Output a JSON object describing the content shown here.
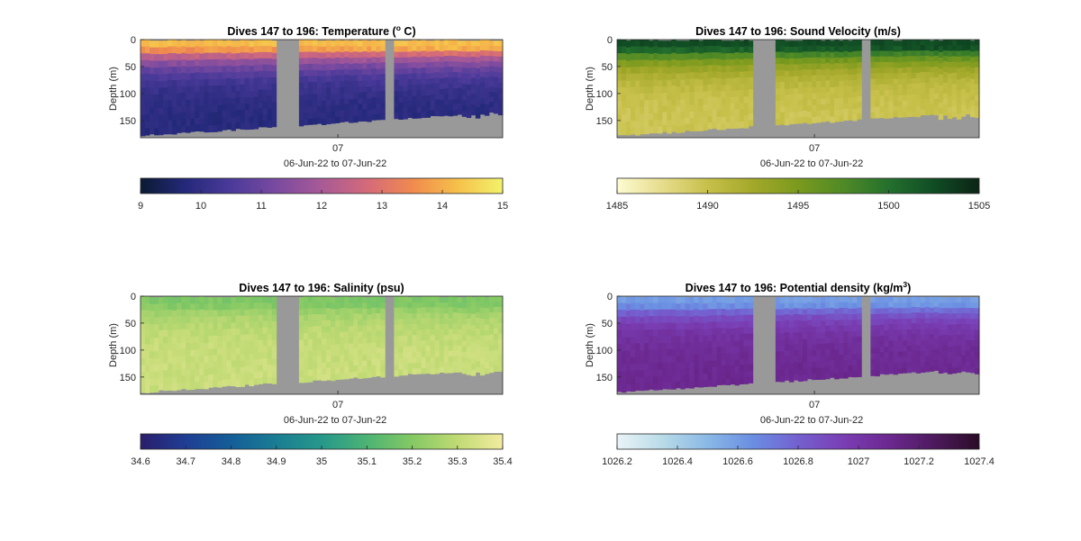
{
  "figure": {
    "background": "#ffffff",
    "land_color": "#999999"
  },
  "chart_data": [
    {
      "type": "heatmap",
      "title": "Dives 147 to 196: Temperature (",
      "title_sup": "o",
      "title_tail": " C)",
      "ylabel": "Depth (m)",
      "yticks": [
        0,
        50,
        100,
        150
      ],
      "ylim": [
        0,
        182
      ],
      "xtick_label": "07",
      "xlabel": "06-Jun-22 to 07-Jun-22",
      "colorbar": {
        "ticks": [
          "9",
          "10",
          "11",
          "12",
          "13",
          "14",
          "15"
        ],
        "range": [
          9,
          15
        ],
        "colormap": [
          "#0b1a33",
          "#24297a",
          "#4b3a9a",
          "#7a4aa0",
          "#a85a96",
          "#d46a7a",
          "#f08a4e",
          "#f6c04a",
          "#f2f26a"
        ]
      },
      "profile": {
        "surface": 14.2,
        "mixed_depth": 15,
        "deep": 9.8
      }
    },
    {
      "type": "heatmap",
      "title": "Dives 147 to 196: Sound Velocity (m/s)",
      "title_sup": "",
      "title_tail": "",
      "ylabel": "Depth (m)",
      "yticks": [
        0,
        50,
        100,
        150
      ],
      "ylim": [
        0,
        182
      ],
      "xtick_label": "07",
      "xlabel": "06-Jun-22 to 07-Jun-22",
      "colorbar": {
        "ticks": [
          "1485",
          "1490",
          "1495",
          "1500",
          "1505"
        ],
        "range": [
          1485,
          1505
        ],
        "colormap": [
          "#fdfbd2",
          "#e6dc8c",
          "#c7c04a",
          "#a3a82a",
          "#7a9a1e",
          "#4f8a26",
          "#24702e",
          "#104c24",
          "#0c2416"
        ]
      },
      "profile": {
        "surface": 1502.5,
        "mixed_depth": 15,
        "deep": 1489.5
      }
    },
    {
      "type": "heatmap",
      "title": "Dives 147 to 196: Salinity (psu)",
      "title_sup": "",
      "title_tail": "",
      "ylabel": "Depth (m)",
      "yticks": [
        0,
        50,
        100,
        150
      ],
      "ylim": [
        0,
        182
      ],
      "xtick_label": "07",
      "xlabel": "06-Jun-22 to 07-Jun-22",
      "colorbar": {
        "ticks": [
          "34.6",
          "34.7",
          "34.8",
          "34.9",
          "35",
          "35.1",
          "35.2",
          "35.3",
          "35.4"
        ],
        "range": [
          34.6,
          35.4
        ],
        "colormap": [
          "#2a1e6c",
          "#1f3e94",
          "#145e98",
          "#1a7d93",
          "#26988a",
          "#4db374",
          "#84c964",
          "#c0da74",
          "#f3eca0"
        ]
      },
      "profile": {
        "surface": 35.19,
        "mixed_depth": 15,
        "deep": 35.32
      }
    },
    {
      "type": "heatmap",
      "title": "Dives 147 to 196: Potential density (kg/m",
      "title_sup": "3",
      "title_tail": ")",
      "ylabel": "Depth (m)",
      "yticks": [
        0,
        50,
        100,
        150
      ],
      "ylim": [
        0,
        182
      ],
      "xtick_label": "07",
      "xlabel": "06-Jun-22 to 07-Jun-22",
      "colorbar": {
        "ticks": [
          "1026.2",
          "1026.4",
          "1026.6",
          "1026.8",
          "1027",
          "1027.2",
          "1027.4"
        ],
        "range": [
          1026.2,
          1027.4
        ],
        "colormap": [
          "#eaf4f6",
          "#b8dbe8",
          "#8ab8e6",
          "#6a8ee2",
          "#7460d0",
          "#7a3eb4",
          "#6c2890",
          "#4e1a5e",
          "#2a0c26"
        ]
      },
      "profile": {
        "surface": 1026.6,
        "mixed_depth": 15,
        "deep": 1027.1
      }
    }
  ]
}
